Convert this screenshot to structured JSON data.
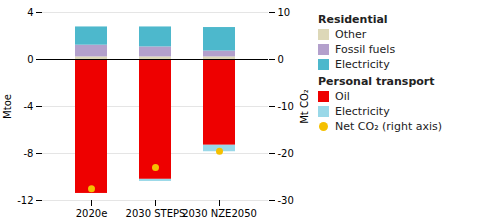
{
  "chart_data": {
    "type": "bar",
    "stacked": true,
    "categories": [
      "2020e",
      "2030 STEPS",
      "2030 NZE2050"
    ],
    "ylabel": "Mtoe",
    "y2label": "Mt CO₂",
    "ylim": [
      -12,
      4
    ],
    "yticks": [
      -12,
      -8,
      -4,
      0,
      4
    ],
    "y2lim": [
      -30,
      10
    ],
    "y2ticks": [
      -30,
      -20,
      -10,
      0,
      10
    ],
    "grid": true,
    "legend": "right",
    "series": [
      {
        "name": "Other",
        "group": "Residential",
        "color": "#ddd8b8",
        "values": [
          0.22,
          0.22,
          0.22
        ]
      },
      {
        "name": "Fossil fuels",
        "group": "Residential",
        "color": "#b3a0cc",
        "values": [
          1.0,
          0.85,
          0.5
        ]
      },
      {
        "name": "Electricity",
        "group": "Residential",
        "color": "#4db8cc",
        "values": [
          1.55,
          1.7,
          2.0
        ]
      },
      {
        "name": "Oil",
        "group": "Personal transport",
        "color": "#ee0000",
        "values": [
          -11.4,
          -10.2,
          -7.3
        ]
      },
      {
        "name": "Electricity",
        "group": "Personal transport",
        "color": "#99d8e8",
        "values": [
          0.0,
          -0.18,
          -0.55
        ]
      },
      {
        "name": "Net CO₂ (right axis)",
        "type": "scatter",
        "axis": "y2",
        "color": "#f5c000",
        "values": [
          -27.5,
          -23.0,
          -19.5
        ]
      }
    ]
  }
}
